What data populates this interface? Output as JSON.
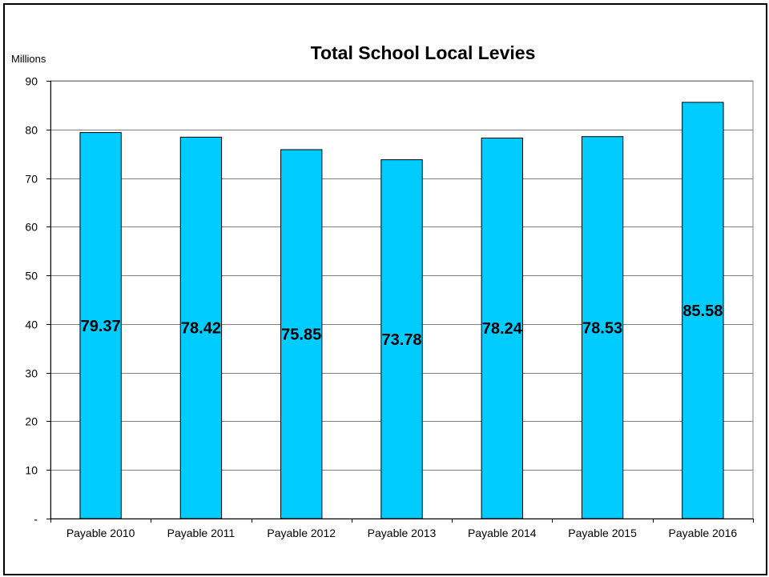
{
  "chart_data": {
    "type": "bar",
    "title": "Total School Local Levies",
    "unit_label": "Millions",
    "categories": [
      "Payable 2010",
      "Payable 2011",
      "Payable 2012",
      "Payable 2013",
      "Payable 2014",
      "Payable 2015",
      "Payable 2016"
    ],
    "values": [
      79.37,
      78.42,
      75.85,
      73.78,
      78.24,
      78.53,
      85.58
    ],
    "data_labels": [
      "79.37",
      "78.42",
      "75.85",
      "73.78",
      "78.24",
      "78.53",
      "85.58"
    ],
    "ylim": [
      0,
      90
    ],
    "yticks": [
      0,
      10,
      20,
      30,
      40,
      50,
      60,
      70,
      80,
      90
    ],
    "ytick_labels": [
      "-",
      "10",
      "20",
      "30",
      "40",
      "50",
      "60",
      "70",
      "80",
      "90"
    ],
    "grid": true,
    "legend": "none",
    "colors": {
      "bar_fill": "#00CCFF",
      "bar_stroke": "#000000",
      "grid": "#808080"
    }
  }
}
